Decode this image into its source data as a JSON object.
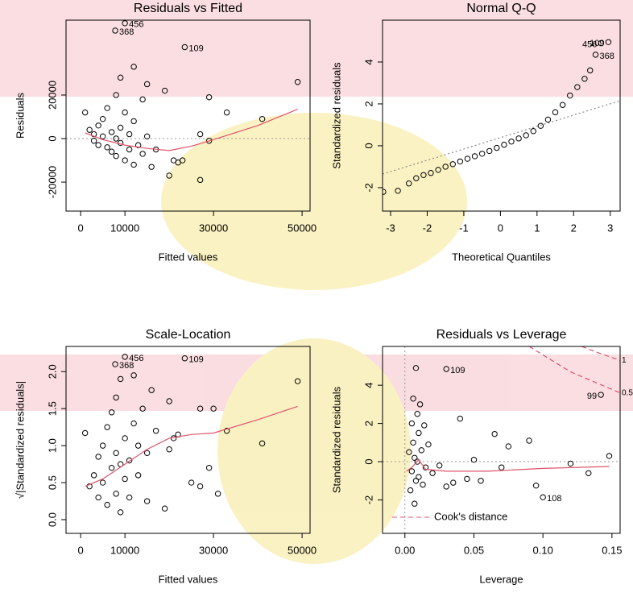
{
  "chart_data": [
    {
      "type": "scatter",
      "title": "Residuals vs Fitted",
      "x_label": "Fitted values",
      "y_label": "Residuals",
      "xlim": [
        -3300,
        51800
      ],
      "ylim": [
        -33300,
        54400
      ],
      "xticks": [
        0,
        10000,
        30000,
        50000
      ],
      "yticks": [
        -20000,
        0,
        20000
      ],
      "hline": 0,
      "x": [
        1000,
        2000,
        3000,
        3000,
        4000,
        4000,
        5000,
        5000,
        6000,
        6000,
        7000,
        7000,
        8000,
        8000,
        8000,
        9000,
        9000,
        9000,
        10000,
        10000,
        11000,
        11000,
        12000,
        12000,
        12000,
        13000,
        14000,
        14000,
        15000,
        15000,
        16000,
        17000,
        19000,
        20000,
        21000,
        22000,
        23000,
        27000,
        27000,
        29000,
        29000,
        33000,
        41000,
        49000
      ],
      "values": [
        12000,
        4000,
        2000,
        -1000,
        6000,
        -3000,
        1000,
        9000,
        -4000,
        14000,
        3000,
        -6000,
        20000,
        0,
        -8000,
        28000,
        5000,
        -2000,
        -10000,
        12000,
        2000,
        -5000,
        33000,
        8000,
        -12000,
        -3000,
        18000,
        -7000,
        25000,
        1000,
        -13000,
        -5000,
        22000,
        -17000,
        -10000,
        -11000,
        -10000,
        2000,
        -19000,
        -1000,
        19000,
        12000,
        9000,
        26000
      ],
      "annotations": [
        {
          "text": "456",
          "x": 10000,
          "y": 53000
        },
        {
          "text": "368",
          "x": 7800,
          "y": 49600
        },
        {
          "text": "109",
          "x": 23500,
          "y": 42000
        }
      ],
      "smooth": {
        "color": "#df536b",
        "x": [
          1000,
          5000,
          10000,
          15000,
          20000,
          25000,
          30000,
          40000,
          49000
        ],
        "values": [
          2600,
          -500,
          -3000,
          -4500,
          -5500,
          -3500,
          -500,
          6000,
          13500
        ]
      }
    },
    {
      "type": "scatter",
      "title": "Normal Q-Q",
      "x_label": "Theoretical Quantiles",
      "y_label": "Standardized residuals",
      "xlim": [
        -3.22,
        3.27
      ],
      "ylim": [
        -3.12,
        6.0
      ],
      "xticks": [
        -3,
        -2,
        -1,
        0,
        1,
        2,
        3
      ],
      "yticks": [
        -2,
        0,
        2,
        4
      ],
      "x": [
        -3.2,
        -2.8,
        -2.5,
        -2.3,
        -2.1,
        -1.9,
        -1.7,
        -1.5,
        -1.3,
        -1.1,
        -0.9,
        -0.7,
        -0.5,
        -0.3,
        -0.1,
        0.1,
        0.3,
        0.5,
        0.7,
        0.9,
        1.1,
        1.3,
        1.5,
        1.7,
        1.9,
        2.1,
        2.3,
        2.45
      ],
      "values": [
        -2.2,
        -2.15,
        -1.8,
        -1.55,
        -1.4,
        -1.3,
        -1.15,
        -1.0,
        -0.88,
        -0.75,
        -0.62,
        -0.5,
        -0.38,
        -0.25,
        -0.1,
        0.05,
        0.2,
        0.35,
        0.5,
        0.7,
        0.95,
        1.25,
        1.6,
        1.95,
        2.4,
        2.8,
        3.2,
        3.6
      ],
      "annotations": [
        {
          "text": "368",
          "x": 2.6,
          "y": 4.35
        },
        {
          "text": "456",
          "x": 2.75,
          "y": 4.9
        },
        {
          "text": "109",
          "x": 2.95,
          "y": 4.95
        }
      ],
      "reference_line": {
        "color": "#888888",
        "x": [
          -3.22,
          3.27
        ],
        "values": [
          -1.35,
          2.15
        ]
      }
    },
    {
      "type": "scatter",
      "title": "Scale-Location",
      "x_label": "Fitted values",
      "y_label": "√|Standardized residuals|",
      "xlim": [
        -3300,
        51800
      ],
      "ylim": [
        -0.185,
        2.34
      ],
      "xticks": [
        0,
        10000,
        30000,
        50000
      ],
      "yticks": [
        {
          "value": 0,
          "label": "0.0"
        },
        0.5,
        {
          "value": 1,
          "label": "1.0"
        },
        1.5,
        {
          "value": 2,
          "label": "2.0"
        }
      ],
      "x": [
        1000,
        2000,
        3000,
        4000,
        4000,
        5000,
        5000,
        6000,
        6000,
        7000,
        7000,
        8000,
        8000,
        8000,
        9000,
        9000,
        9000,
        10000,
        10000,
        11000,
        11000,
        12000,
        12000,
        13000,
        13000,
        14000,
        15000,
        15000,
        16000,
        17000,
        19000,
        20000,
        20000,
        21000,
        22000,
        25000,
        27000,
        27000,
        29000,
        30000,
        31000,
        33000,
        41000,
        49000
      ],
      "values": [
        1.17,
        0.45,
        0.6,
        0.3,
        0.85,
        0.5,
        1.0,
        0.2,
        1.25,
        0.7,
        1.45,
        0.35,
        0.9,
        1.65,
        0.1,
        0.75,
        1.9,
        0.55,
        1.1,
        0.3,
        0.8,
        1.3,
        1.95,
        0.6,
        1.0,
        1.5,
        0.25,
        0.9,
        1.75,
        1.2,
        0.15,
        1.6,
        0.95,
        1.1,
        1.15,
        0.5,
        0.45,
        1.5,
        0.7,
        1.5,
        0.35,
        1.2,
        1.03,
        1.87
      ],
      "annotations": [
        {
          "text": "456",
          "x": 10000,
          "y": 2.2
        },
        {
          "text": "368",
          "x": 7800,
          "y": 2.1
        },
        {
          "text": "109",
          "x": 23500,
          "y": 2.18
        }
      ],
      "smooth": {
        "color": "#df536b",
        "x": [
          1000,
          5000,
          10000,
          15000,
          20000,
          25000,
          30000,
          40000,
          49000
        ],
        "values": [
          0.45,
          0.55,
          0.75,
          0.95,
          1.1,
          1.15,
          1.17,
          1.35,
          1.53
        ]
      }
    },
    {
      "type": "scatter",
      "title": "Residuals vs Leverage",
      "x_label": "Leverage",
      "y_label": "Standardized residuals",
      "xlim": [
        -0.0162,
        0.1559
      ],
      "ylim": [
        -3.75,
        6.03
      ],
      "xticks": [
        {
          "value": 0,
          "label": "0.00"
        },
        {
          "value": 0.05,
          "label": "0.05"
        },
        {
          "value": 0.1,
          "label": "0.10"
        },
        {
          "value": 0.15,
          "label": "0.15"
        }
      ],
      "yticks": [
        -2,
        0,
        2,
        4
      ],
      "hline": 0,
      "vline": 0,
      "x": [
        0.003,
        0.004,
        0.005,
        0.005,
        0.006,
        0.006,
        0.007,
        0.007,
        0.008,
        0.008,
        0.009,
        0.009,
        0.01,
        0.01,
        0.011,
        0.012,
        0.013,
        0.014,
        0.015,
        0.017,
        0.02,
        0.025,
        0.03,
        0.035,
        0.04,
        0.045,
        0.05,
        0.055,
        0.065,
        0.07,
        0.075,
        0.09,
        0.095,
        0.12,
        0.133,
        0.148
      ],
      "values": [
        0.5,
        -1.5,
        2.0,
        -0.5,
        3.3,
        1.0,
        -2.2,
        0.2,
        4.9,
        -1.0,
        2.5,
        0.0,
        1.5,
        -0.8,
        3.0,
        0.6,
        -1.2,
        1.9,
        -0.3,
        0.9,
        -0.6,
        -0.2,
        -1.3,
        -1.1,
        2.25,
        -0.9,
        0.1,
        -1.0,
        1.45,
        -0.3,
        0.8,
        1.1,
        -1.25,
        -0.1,
        -0.6,
        0.3
      ],
      "annotations": [
        {
          "text": "109",
          "x": 0.03,
          "y": 4.85
        },
        {
          "text": "99",
          "x": 0.142,
          "y": 3.5
        },
        {
          "text": "108",
          "x": 0.1,
          "y": -1.86
        }
      ],
      "smooth": {
        "color": "#df536b",
        "x": [
          0.001,
          0.005,
          0.01,
          0.015,
          0.03,
          0.06,
          0.1,
          0.148
        ],
        "values": [
          -0.5,
          -0.3,
          0.1,
          -0.4,
          -0.5,
          -0.5,
          -0.35,
          -0.25
        ]
      },
      "contours": [
        {
          "name": "1",
          "color": "#df536b",
          "x": [
            0.128,
            0.14,
            0.1559
          ],
          "values": [
            6.03,
            5.7,
            5.3
          ]
        },
        {
          "name": "0.5",
          "color": "#df536b",
          "x": [
            0.09,
            0.12,
            0.1559
          ],
          "values": [
            6.03,
            4.7,
            3.6
          ]
        }
      ],
      "legend": {
        "text": "Cook's distance",
        "color": "#df536b",
        "position": "bottom-left"
      }
    }
  ]
}
